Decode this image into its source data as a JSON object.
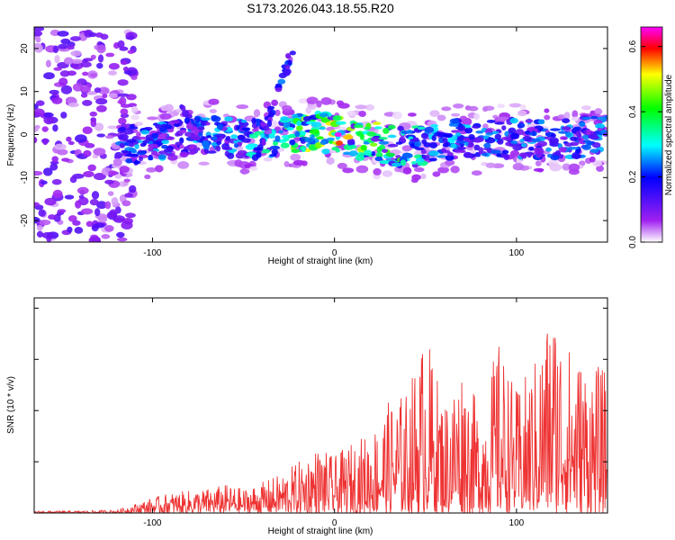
{
  "chart_data": [
    {
      "type": "heatmap",
      "title": "S173.2026.043.18.55.R20",
      "xlabel": "Height of straight line (km)",
      "ylabel": "Frequency (Hz)",
      "xlim": [
        -165,
        150
      ],
      "ylim": [
        -25,
        25
      ],
      "x_ticks": [
        -100,
        0,
        100
      ],
      "y_ticks": [
        -20,
        -10,
        0,
        10,
        20
      ],
      "colorbar": {
        "label": "Normalized spectral amplitude",
        "range": [
          0.0,
          0.66
        ],
        "ticks": [
          "0.0",
          "0.2",
          "0.4",
          "0.6"
        ],
        "tick_values": [
          0.0,
          0.2,
          0.4,
          0.6
        ]
      },
      "ridge": {
        "description": "Main echo band: frequency centre vs height",
        "x": [
          -115,
          -100,
          -85,
          -70,
          -55,
          -40,
          -25,
          -10,
          0,
          10,
          25,
          40,
          55,
          70,
          85,
          100,
          115,
          130,
          145
        ],
        "y": [
          -2,
          -2,
          -1,
          0,
          -1,
          -1,
          0,
          1,
          0,
          -1,
          -2,
          -3,
          -2,
          -1,
          -1,
          -1,
          -1,
          -1,
          0
        ],
        "peak_amplitude_at_x": 2,
        "peak_amplitude": 0.66
      }
    },
    {
      "type": "line",
      "title": "",
      "xlabel": "Height of straight line (km)",
      "ylabel": "SNR (10 * v/v)",
      "xlim": [
        -165,
        150
      ],
      "ylim": [
        0,
        2100
      ],
      "x_ticks": [
        -100,
        0,
        100
      ],
      "y_ticks": [
        0,
        500,
        1000,
        1500,
        2000
      ],
      "series": [
        {
          "name": "SNR",
          "color": "#ee3333",
          "envelope_x": [
            -165,
            -140,
            -120,
            -110,
            -100,
            -90,
            -80,
            -70,
            -60,
            -50,
            -40,
            -30,
            -20,
            -10,
            0,
            10,
            20,
            30,
            40,
            50,
            60,
            70,
            80,
            90,
            100,
            110,
            120,
            130,
            140,
            150
          ],
          "envelope_max": [
            20,
            20,
            30,
            90,
            150,
            200,
            220,
            240,
            280,
            240,
            300,
            380,
            500,
            650,
            550,
            700,
            800,
            1100,
            1200,
            1800,
            1100,
            1500,
            1000,
            1700,
            1200,
            1500,
            2100,
            1600,
            1500,
            1380
          ]
        }
      ]
    }
  ]
}
